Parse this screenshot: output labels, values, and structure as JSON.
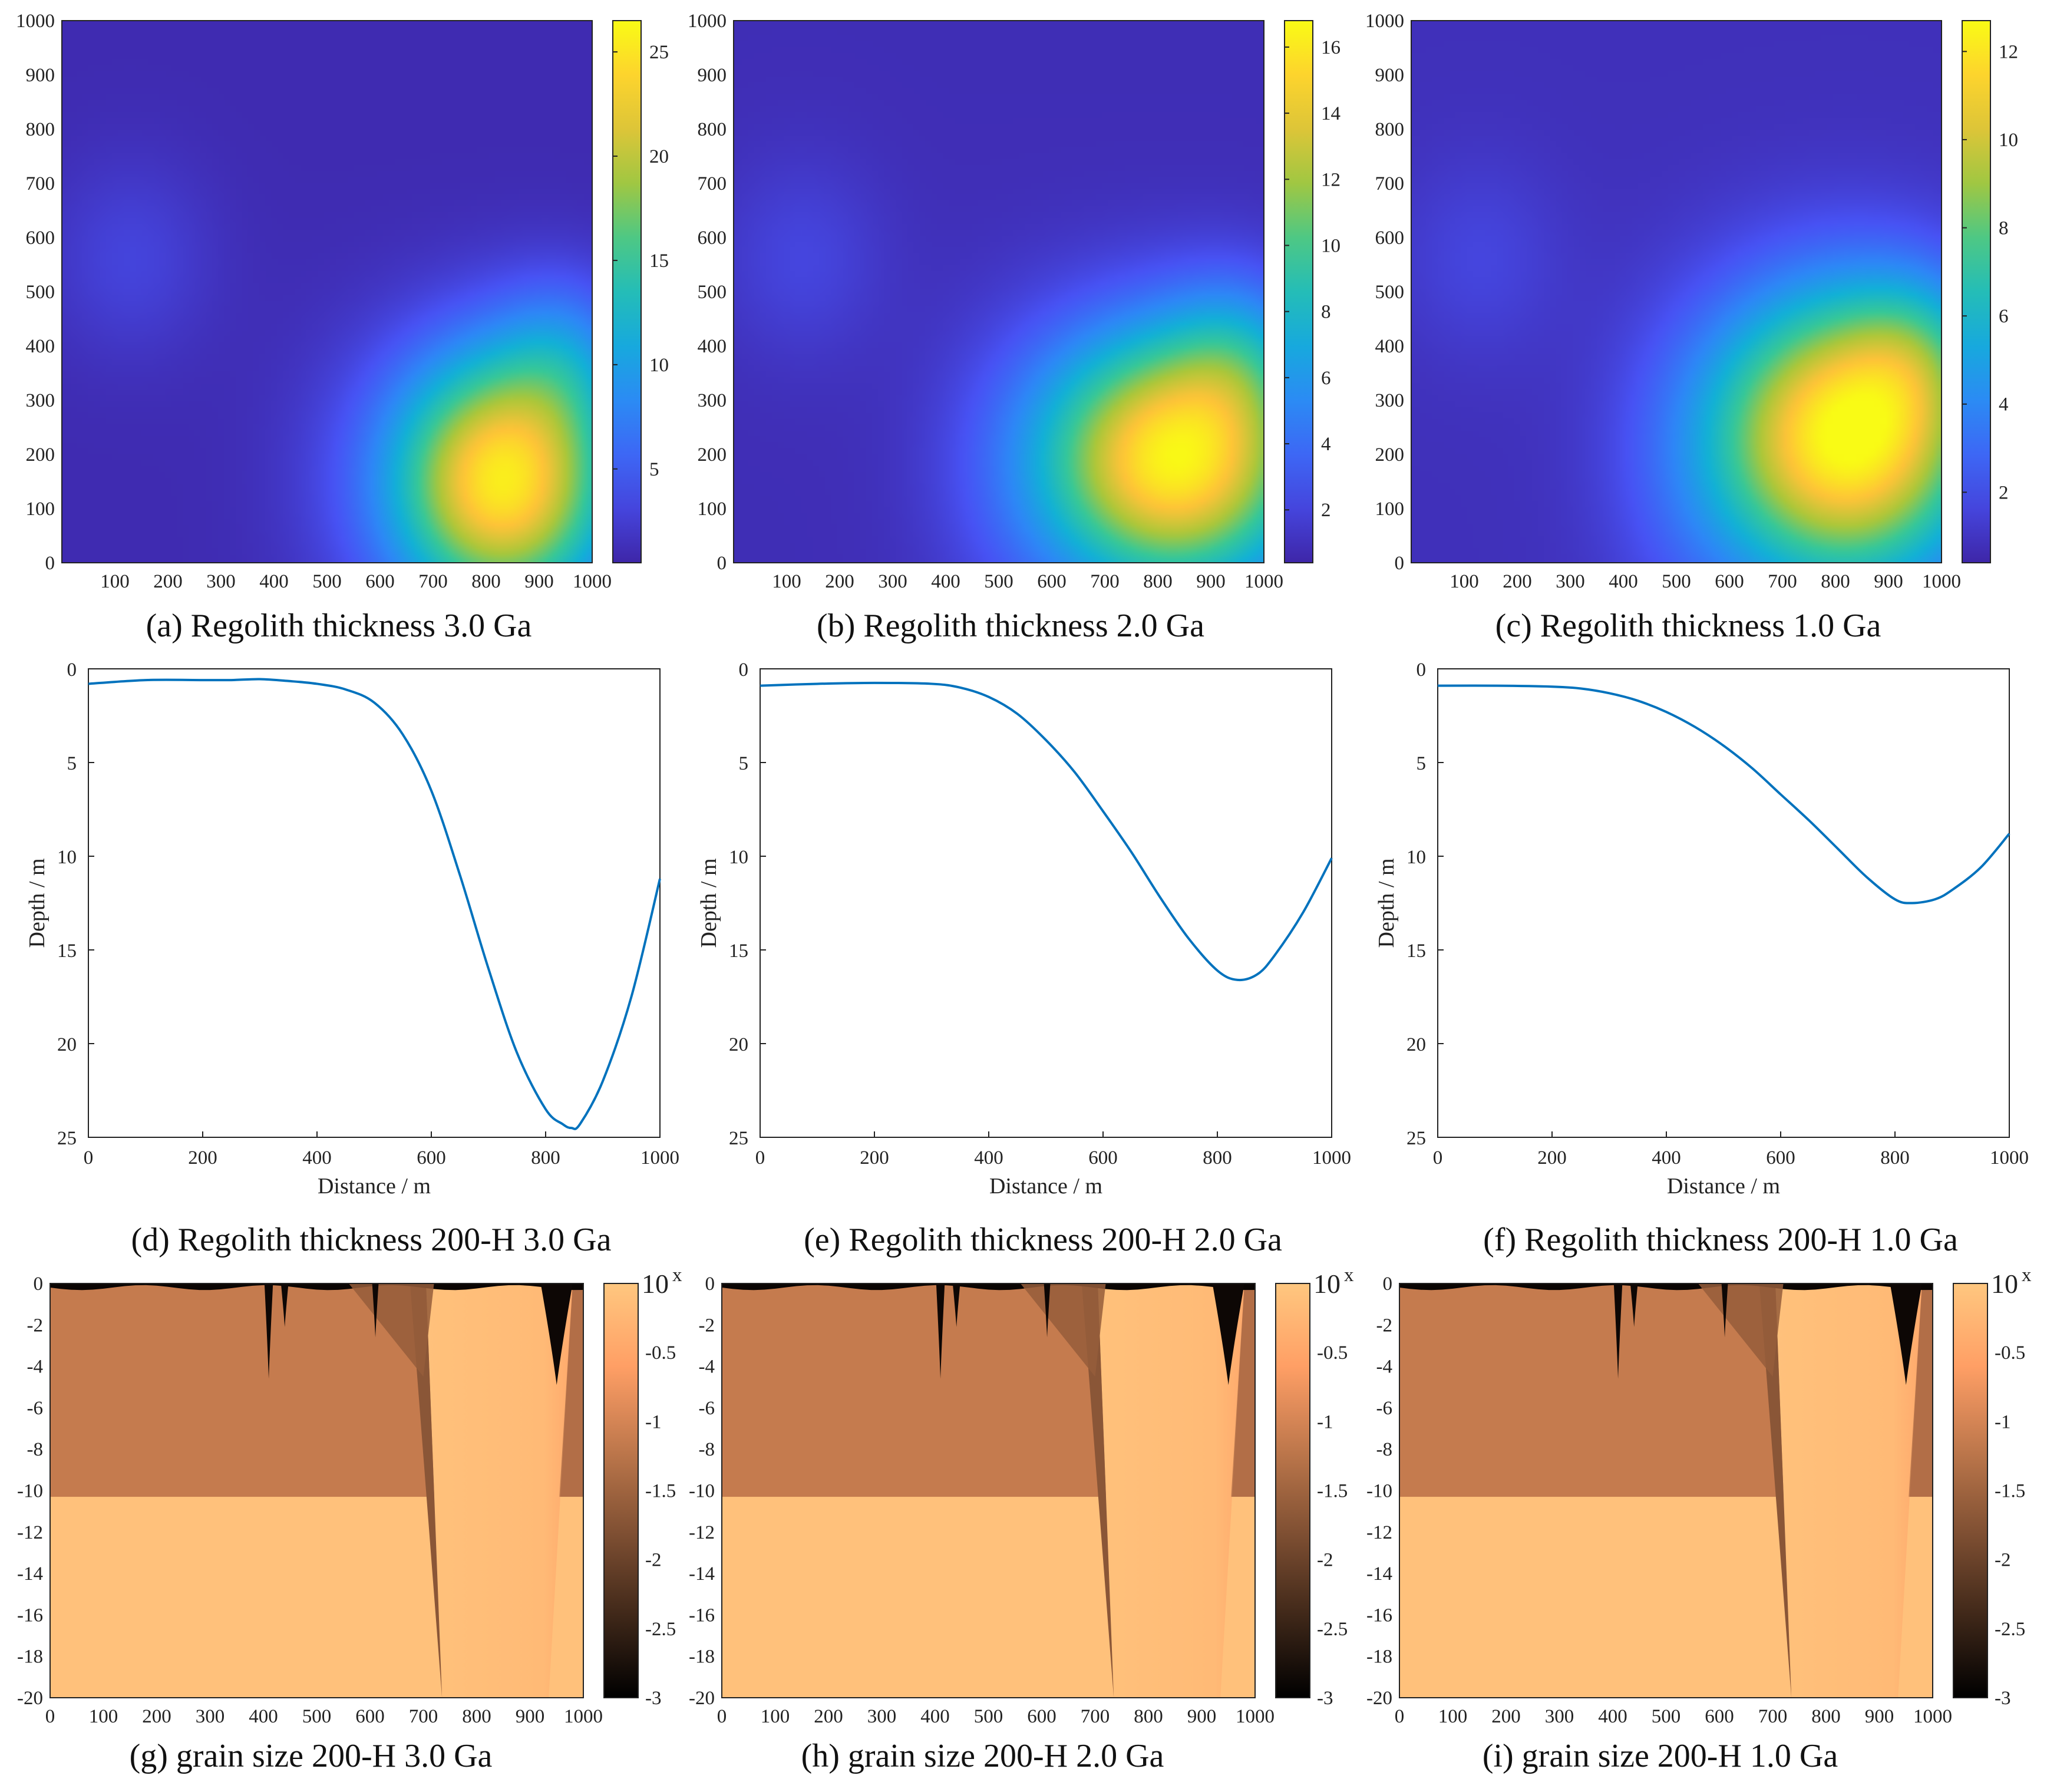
{
  "chart_data": [
    {
      "id": "a",
      "type": "heatmap",
      "caption": "(a) Regolith thickness 3.0 Ga",
      "x_ticks": [
        "100",
        "200",
        "300",
        "400",
        "500",
        "600",
        "700",
        "800",
        "900",
        "1000"
      ],
      "y_ticks": [
        "0",
        "100",
        "200",
        "300",
        "400",
        "500",
        "600",
        "700",
        "800",
        "900",
        "1000"
      ],
      "xlim": [
        0,
        1000
      ],
      "ylim": [
        0,
        1000
      ],
      "colormap": "parula",
      "colorbar": {
        "range": [
          0.5,
          26.5
        ],
        "ticks": [
          "5",
          "10",
          "15",
          "20",
          "25"
        ],
        "tick_values": [
          5,
          10,
          15,
          20,
          25
        ]
      },
      "peak": {
        "x": 830,
        "y": 150,
        "value": 25.0
      },
      "secondary_bump": {
        "x": 130,
        "y": 560,
        "value": 4.0
      }
    },
    {
      "id": "b",
      "type": "heatmap",
      "caption": "(b) Regolith thickness 2.0 Ga",
      "x_ticks": [
        "100",
        "200",
        "300",
        "400",
        "500",
        "600",
        "700",
        "800",
        "900",
        "1000"
      ],
      "y_ticks": [
        "0",
        "100",
        "200",
        "300",
        "400",
        "500",
        "600",
        "700",
        "800",
        "900",
        "1000"
      ],
      "xlim": [
        0,
        1000
      ],
      "ylim": [
        0,
        1000
      ],
      "colormap": "parula",
      "colorbar": {
        "range": [
          0.4,
          16.8
        ],
        "ticks": [
          "2",
          "4",
          "6",
          "8",
          "10",
          "12",
          "14",
          "16"
        ],
        "tick_values": [
          2,
          4,
          6,
          8,
          10,
          12,
          14,
          16
        ]
      },
      "peak": {
        "x": 830,
        "y": 190,
        "value": 16.0
      },
      "secondary_bump": {
        "x": 130,
        "y": 560,
        "value": 2.5
      }
    },
    {
      "id": "c",
      "type": "heatmap",
      "caption": "(c) Regolith thickness 1.0 Ga",
      "x_ticks": [
        "100",
        "200",
        "300",
        "400",
        "500",
        "600",
        "700",
        "800",
        "900",
        "1000"
      ],
      "y_ticks": [
        "0",
        "100",
        "200",
        "300",
        "400",
        "500",
        "600",
        "700",
        "800",
        "900",
        "1000"
      ],
      "xlim": [
        0,
        1000
      ],
      "ylim": [
        0,
        1000
      ],
      "colormap": "parula",
      "colorbar": {
        "range": [
          0.4,
          12.7
        ],
        "ticks": [
          "2",
          "4",
          "6",
          "8",
          "10",
          "12"
        ],
        "tick_values": [
          2,
          4,
          6,
          8,
          10,
          12
        ]
      },
      "peak": {
        "x": 820,
        "y": 230,
        "value": 12.4
      },
      "secondary_bump": {
        "x": 130,
        "y": 560,
        "value": 1.8
      }
    },
    {
      "id": "d",
      "type": "line",
      "caption": "(d) Regolith thickness 200-H 3.0 Ga",
      "xlabel": "Distance / m",
      "ylabel": "Depth / m",
      "xlim": [
        0,
        1000
      ],
      "ylim": [
        0,
        25
      ],
      "y_reversed": true,
      "x_ticks": [
        "0",
        "200",
        "400",
        "600",
        "800",
        "1000"
      ],
      "y_ticks": [
        "0",
        "5",
        "10",
        "15",
        "20",
        "25"
      ],
      "series": [
        {
          "color": "#0072BD",
          "x": [
            0,
            100,
            200,
            250,
            300,
            350,
            400,
            450,
            500,
            550,
            600,
            650,
            700,
            750,
            800,
            830,
            845,
            860,
            900,
            950,
            1000
          ],
          "y": [
            0.8,
            0.6,
            0.6,
            0.6,
            0.55,
            0.65,
            0.8,
            1.1,
            1.8,
            3.5,
            6.5,
            11,
            16,
            20.5,
            23.5,
            24.3,
            24.5,
            24.3,
            22,
            17.5,
            11.2
          ]
        }
      ]
    },
    {
      "id": "e",
      "type": "line",
      "caption": "(e) Regolith thickness 200-H 2.0 Ga",
      "xlabel": "Distance / m",
      "ylabel": "Depth / m",
      "xlim": [
        0,
        1000
      ],
      "ylim": [
        0,
        25
      ],
      "y_reversed": true,
      "x_ticks": [
        "0",
        "200",
        "400",
        "600",
        "800",
        "1000"
      ],
      "y_ticks": [
        "0",
        "5",
        "10",
        "15",
        "20",
        "25"
      ],
      "series": [
        {
          "color": "#0072BD",
          "x": [
            0,
            100,
            200,
            300,
            350,
            400,
            450,
            500,
            550,
            600,
            650,
            700,
            750,
            800,
            835,
            870,
            900,
            950,
            1000
          ],
          "y": [
            0.9,
            0.8,
            0.75,
            0.8,
            1.0,
            1.5,
            2.4,
            3.8,
            5.5,
            7.6,
            9.8,
            12.2,
            14.4,
            16.1,
            16.6,
            16.3,
            15.3,
            13.0,
            10.1
          ]
        }
      ]
    },
    {
      "id": "f",
      "type": "line",
      "caption": "(f) Regolith thickness 200-H 1.0 Ga",
      "xlabel": "Distance / m",
      "ylabel": "Depth / m",
      "xlim": [
        0,
        1000
      ],
      "ylim": [
        0,
        25
      ],
      "y_reversed": true,
      "x_ticks": [
        "0",
        "200",
        "400",
        "600",
        "800",
        "1000"
      ],
      "y_ticks": [
        "0",
        "5",
        "10",
        "15",
        "20",
        "25"
      ],
      "series": [
        {
          "color": "#0072BD",
          "x": [
            0,
            100,
            200,
            250,
            300,
            350,
            400,
            450,
            500,
            550,
            600,
            650,
            700,
            750,
            800,
            830,
            870,
            900,
            950,
            1000
          ],
          "y": [
            0.9,
            0.9,
            0.95,
            1.05,
            1.3,
            1.7,
            2.3,
            3.1,
            4.1,
            5.3,
            6.7,
            8.1,
            9.6,
            11.1,
            12.3,
            12.5,
            12.3,
            11.8,
            10.6,
            8.8
          ]
        }
      ]
    },
    {
      "id": "g",
      "type": "heatmap",
      "caption": "(g) grain size 200-H 3.0 Ga",
      "x_ticks": [
        "0",
        "100",
        "200",
        "300",
        "400",
        "500",
        "600",
        "700",
        "800",
        "900",
        "1000"
      ],
      "y_ticks": [
        "0",
        "-2",
        "-4",
        "-6",
        "-8",
        "-10",
        "-12",
        "-14",
        "-16",
        "-18",
        "-20"
      ],
      "xlim": [
        0,
        1000
      ],
      "ylim": [
        -20,
        0
      ],
      "colormap": "copper",
      "colorbar": {
        "range": [
          -3,
          0
        ],
        "ticks": [
          "-0.5",
          "-1",
          "-1.5",
          "-2",
          "-2.5",
          "-3"
        ],
        "tick_values": [
          -0.5,
          -1,
          -1.5,
          -2,
          -2.5,
          -3
        ],
        "exponent_label": "10",
        "exponent_sup": "x"
      },
      "layer_boundary_depth": -10.3,
      "upper_layer_log_value": -1.15,
      "lower_layer_log_value": -0.1,
      "channel": {
        "left_top_x": 705,
        "left_bottom_x": 735,
        "right_top_x": 980,
        "right_bottom_x": 935
      },
      "dark_spikes": [
        {
          "x": 410,
          "depth": -4.6,
          "width": 16
        },
        {
          "x": 440,
          "depth": -2.1,
          "width": 14
        },
        {
          "x": 610,
          "depth": -2.6,
          "width": 12
        },
        {
          "x": 950,
          "depth": -4.9,
          "width": 60
        }
      ]
    },
    {
      "id": "h",
      "type": "heatmap",
      "caption": "(h) grain size 200-H 2.0 Ga",
      "x_ticks": [
        "0",
        "100",
        "200",
        "300",
        "400",
        "500",
        "600",
        "700",
        "800",
        "900",
        "1000"
      ],
      "y_ticks": [
        "0",
        "-2",
        "-4",
        "-6",
        "-8",
        "-10",
        "-12",
        "-14",
        "-16",
        "-18",
        "-20"
      ],
      "xlim": [
        0,
        1000
      ],
      "ylim": [
        -20,
        0
      ],
      "colormap": "copper",
      "colorbar": {
        "range": [
          -3,
          0
        ],
        "ticks": [
          "-0.5",
          "-1",
          "-1.5",
          "-2",
          "-2.5",
          "-3"
        ],
        "tick_values": [
          -0.5,
          -1,
          -1.5,
          -2,
          -2.5,
          -3
        ],
        "exponent_label": "10",
        "exponent_sup": "x"
      },
      "layer_boundary_depth": -10.3,
      "upper_layer_log_value": -1.15,
      "lower_layer_log_value": -0.1,
      "channel": {
        "left_top_x": 705,
        "left_bottom_x": 735,
        "right_top_x": 980,
        "right_bottom_x": 935
      },
      "dark_spikes": [
        {
          "x": 410,
          "depth": -4.6,
          "width": 16
        },
        {
          "x": 440,
          "depth": -2.1,
          "width": 14
        },
        {
          "x": 610,
          "depth": -2.6,
          "width": 12
        },
        {
          "x": 950,
          "depth": -4.9,
          "width": 60
        }
      ]
    },
    {
      "id": "i",
      "type": "heatmap",
      "caption": "(i) grain size 200-H 1.0 Ga",
      "x_ticks": [
        "0",
        "100",
        "200",
        "300",
        "400",
        "500",
        "600",
        "700",
        "800",
        "900",
        "1000"
      ],
      "y_ticks": [
        "0",
        "-2",
        "-4",
        "-6",
        "-8",
        "-10",
        "-12",
        "-14",
        "-16",
        "-18",
        "-20"
      ],
      "xlim": [
        0,
        1000
      ],
      "ylim": [
        -20,
        0
      ],
      "colormap": "copper",
      "colorbar": {
        "range": [
          -3,
          0
        ],
        "ticks": [
          "-0.5",
          "-1",
          "-1.5",
          "-2",
          "-2.5",
          "-3"
        ],
        "tick_values": [
          -0.5,
          -1,
          -1.5,
          -2,
          -2.5,
          -3
        ],
        "exponent_label": "10",
        "exponent_sup": "x"
      },
      "layer_boundary_depth": -10.3,
      "upper_layer_log_value": -1.15,
      "lower_layer_log_value": -0.1,
      "channel": {
        "left_top_x": 705,
        "left_bottom_x": 735,
        "right_top_x": 980,
        "right_bottom_x": 935
      },
      "dark_spikes": [
        {
          "x": 410,
          "depth": -4.6,
          "width": 16
        },
        {
          "x": 440,
          "depth": -2.1,
          "width": 14
        },
        {
          "x": 610,
          "depth": -2.6,
          "width": 12
        },
        {
          "x": 950,
          "depth": -4.9,
          "width": 60
        }
      ]
    }
  ]
}
